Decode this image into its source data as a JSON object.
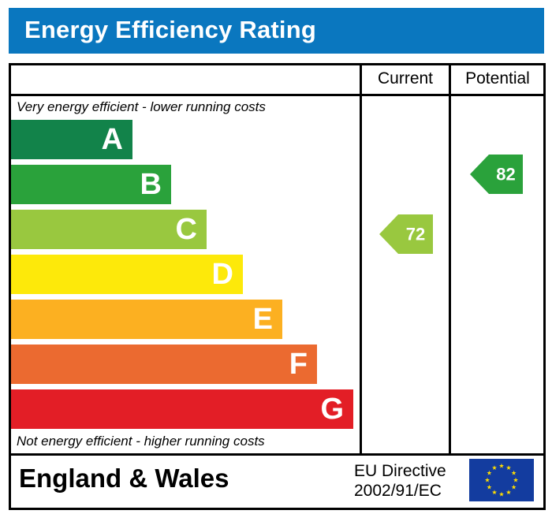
{
  "title": "Energy Efficiency Rating",
  "columns": {
    "current": "Current",
    "potential": "Potential"
  },
  "top_caption": "Very energy efficient - lower running costs",
  "bottom_caption": "Not energy efficient - higher running costs",
  "footer": {
    "region": "England & Wales",
    "directive_line1": "EU Directive",
    "directive_line2": "2002/91/EC"
  },
  "colors": {
    "title_bar": "#0a77bf",
    "A": "#12834a",
    "B": "#2aa23b",
    "C": "#99c83f",
    "D": "#fde90a",
    "E": "#fcb021",
    "F": "#eb6a30",
    "G": "#e31e26",
    "eu_flag": "#133c9f",
    "eu_stars": "#ffdd00"
  },
  "chart_data": {
    "type": "bar",
    "categories": [
      "A",
      "B",
      "C",
      "D",
      "E",
      "F",
      "G"
    ],
    "current": {
      "value": 72,
      "band": "C"
    },
    "potential": {
      "value": 82,
      "band": "B"
    }
  }
}
